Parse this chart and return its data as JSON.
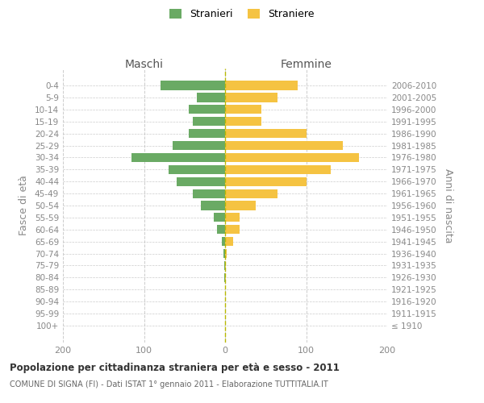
{
  "age_groups": [
    "100+",
    "95-99",
    "90-94",
    "85-89",
    "80-84",
    "75-79",
    "70-74",
    "65-69",
    "60-64",
    "55-59",
    "50-54",
    "45-49",
    "40-44",
    "35-39",
    "30-34",
    "25-29",
    "20-24",
    "15-19",
    "10-14",
    "5-9",
    "0-4"
  ],
  "birth_years": [
    "≤ 1910",
    "1911-1915",
    "1916-1920",
    "1921-1925",
    "1926-1930",
    "1931-1935",
    "1936-1940",
    "1941-1945",
    "1946-1950",
    "1951-1955",
    "1956-1960",
    "1961-1965",
    "1966-1970",
    "1971-1975",
    "1976-1980",
    "1981-1985",
    "1986-1990",
    "1991-1995",
    "1996-2000",
    "2001-2005",
    "2006-2010"
  ],
  "males": [
    0,
    0,
    0,
    0,
    1,
    1,
    2,
    4,
    10,
    14,
    30,
    40,
    60,
    70,
    115,
    65,
    45,
    40,
    45,
    35,
    80
  ],
  "females": [
    0,
    0,
    0,
    0,
    1,
    1,
    2,
    10,
    18,
    18,
    38,
    65,
    100,
    130,
    165,
    145,
    100,
    45,
    45,
    65,
    90
  ],
  "male_color": "#6aaa64",
  "female_color": "#f5c342",
  "center_line_color": "#b8b800",
  "grid_color": "#cccccc",
  "text_color": "#888888",
  "title": "Popolazione per cittadinanza straniera per età e sesso - 2011",
  "subtitle": "COMUNE DI SIGNA (FI) - Dati ISTAT 1° gennaio 2011 - Elaborazione TUTTITALIA.IT",
  "ylabel_left": "Fasce di età",
  "ylabel_right": "Anni di nascita",
  "header_left": "Maschi",
  "header_right": "Femmine",
  "legend_male": "Stranieri",
  "legend_female": "Straniere",
  "xlim": 200,
  "bar_height": 0.75,
  "background_color": "#ffffff"
}
